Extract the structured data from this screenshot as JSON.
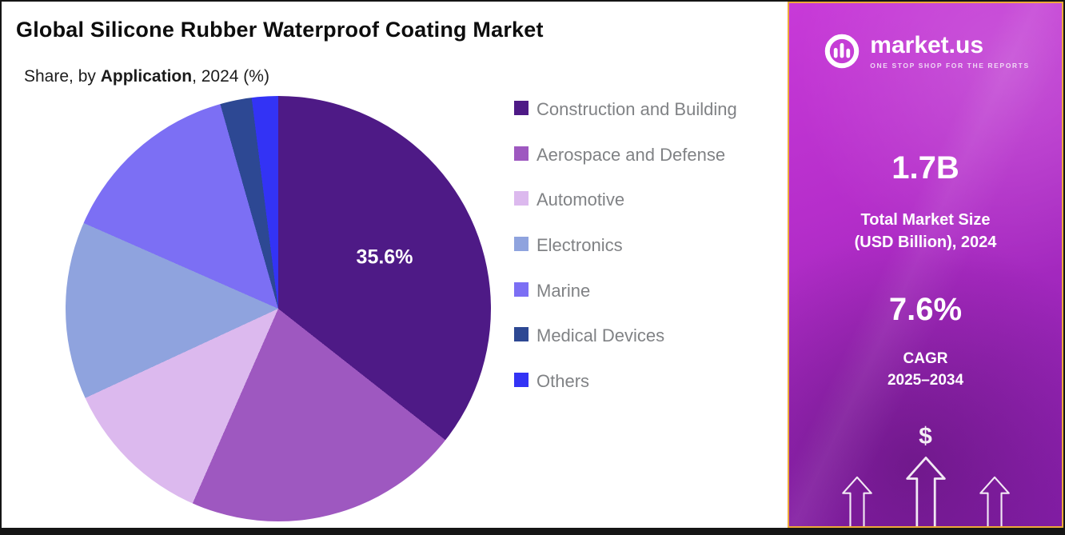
{
  "header": {
    "title": "Global Silicone Rubber Waterproof Coating Market",
    "subtitle_prefix": "Share, by ",
    "subtitle_emphasis": "Application",
    "subtitle_suffix": ", 2024 (%)"
  },
  "chart_data": {
    "type": "pie",
    "title": "Global Silicone Rubber Waterproof Coating Market",
    "subtitle": "Share, by Application, 2024 (%)",
    "unit": "%",
    "start_angle_deg": 0,
    "legend_position": "right",
    "labeled_slice": {
      "label": "Construction and Building",
      "value_label": "35.6%"
    },
    "segments": [
      {
        "label": "Construction and Building",
        "value": 35.6,
        "color": "#4e1a86"
      },
      {
        "label": "Aerospace and Defense",
        "value": 21.0,
        "color": "#9e58c0"
      },
      {
        "label": "Automotive",
        "value": 11.5,
        "color": "#dcb9ee"
      },
      {
        "label": "Electronics",
        "value": 13.5,
        "color": "#8fa3de"
      },
      {
        "label": "Marine",
        "value": 14.0,
        "color": "#7c6ff4"
      },
      {
        "label": "Medical Devices",
        "value": 2.4,
        "color": "#2d4893"
      },
      {
        "label": "Others",
        "value": 2.0,
        "color": "#3333f5"
      }
    ]
  },
  "sidebar": {
    "logo_name": "market.us",
    "logo_tagline": "ONE STOP SHOP FOR THE REPORTS",
    "market_size_value": "1.7B",
    "market_size_label_line1": "Total Market Size",
    "market_size_label_line2": "(USD Billion), 2024",
    "cagr_value": "7.6%",
    "cagr_label_line1": "CAGR",
    "cagr_label_line2": "2025–2034",
    "dollar_symbol": "$",
    "accent_border_color": "#eda93a",
    "gradient_top_color": "#c83ad8",
    "gradient_bottom_color": "#8a1fae"
  }
}
